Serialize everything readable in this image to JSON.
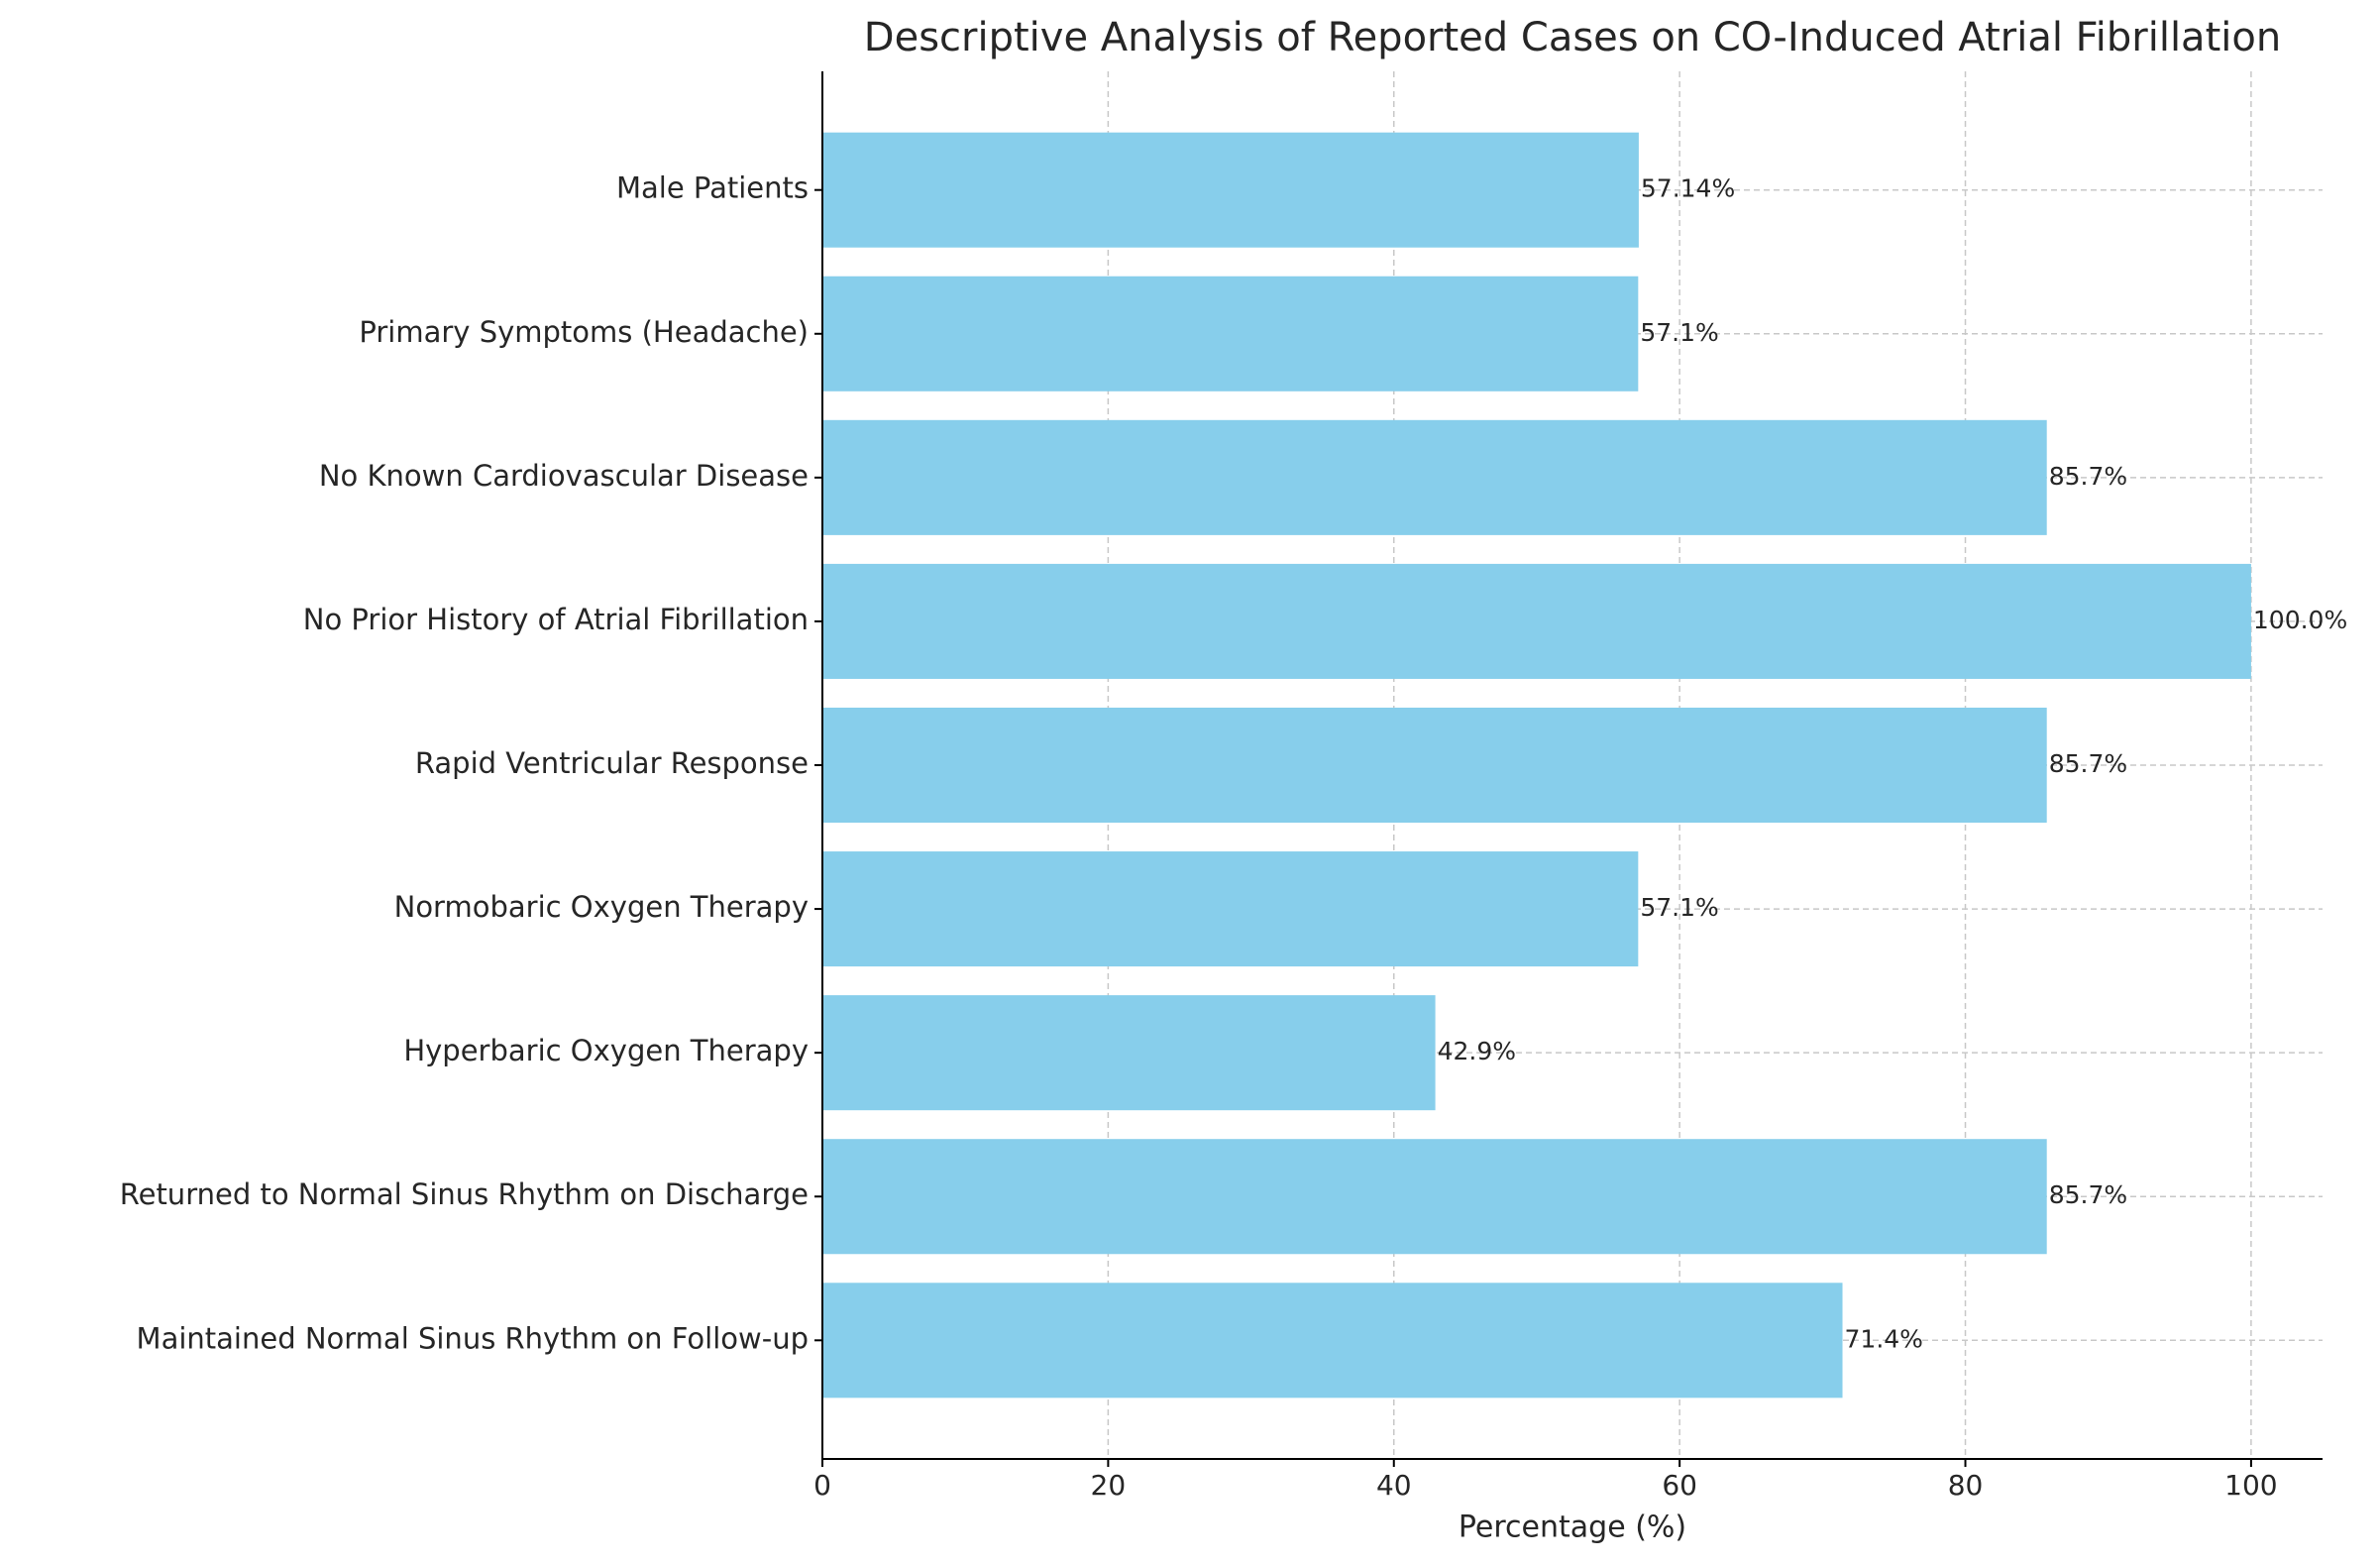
{
  "chart_data": {
    "type": "barh",
    "title": "Descriptive Analysis of Reported Cases on CO-Induced Atrial Fibrillation",
    "xlabel": "Percentage (%)",
    "categories": [
      "Male Patients",
      "Primary Symptoms (Headache)",
      "No Known Cardiovascular Disease",
      "No Prior History of Atrial Fibrillation",
      "Rapid Ventricular Response",
      "Normobaric Oxygen Therapy",
      "Hyperbaric Oxygen Therapy",
      "Returned to Normal Sinus Rhythm on Discharge",
      "Maintained Normal Sinus Rhythm on Follow-up"
    ],
    "values": [
      57.14,
      57.1,
      85.7,
      100.0,
      85.7,
      57.1,
      42.9,
      85.7,
      71.4
    ],
    "value_labels": [
      "57.14%",
      "57.1%",
      "85.7%",
      "100.0%",
      "85.7%",
      "57.1%",
      "42.9%",
      "85.7%",
      "71.4%"
    ],
    "color": "#87ceeb",
    "xlim": [
      0,
      105
    ],
    "xticks": [
      0,
      20,
      40,
      60,
      80,
      100
    ],
    "grid": true
  }
}
